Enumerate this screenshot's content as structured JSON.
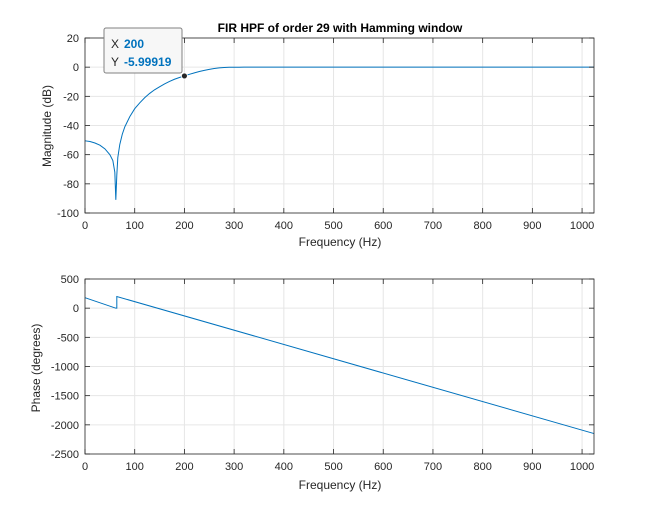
{
  "chart_data": [
    {
      "type": "line",
      "title": "FIR HPF of order 29 with Hamming window",
      "xlabel": "Frequency (Hz)",
      "ylabel": "Magnitude (dB)",
      "xlim": [
        0,
        1024
      ],
      "ylim": [
        -100,
        20
      ],
      "xticks": [
        0,
        100,
        200,
        300,
        400,
        500,
        600,
        700,
        800,
        900,
        1000
      ],
      "yticks": [
        -100,
        -80,
        -60,
        -40,
        -20,
        0,
        20
      ],
      "grid": true,
      "color": "#0072BD",
      "series": [
        {
          "x": [
            0,
            10,
            20,
            30,
            40,
            50,
            56,
            60,
            62,
            64,
            66,
            70,
            75,
            80,
            90,
            100,
            110,
            120,
            130,
            140,
            150,
            160,
            170,
            180,
            190,
            200,
            210,
            220,
            230,
            240,
            250,
            260,
            270,
            280,
            290,
            300,
            310,
            320,
            340,
            400,
            500,
            600,
            700,
            800,
            900,
            1024
          ],
          "y": [
            -50.5,
            -51,
            -52,
            -53.5,
            -56,
            -60,
            -64,
            -72,
            -91,
            -74,
            -62,
            -53,
            -46,
            -41,
            -34,
            -28.5,
            -24.5,
            -21,
            -18,
            -15.5,
            -13.5,
            -11.5,
            -9.8,
            -8.3,
            -7.1,
            -6,
            -4.9,
            -3.9,
            -3,
            -2.2,
            -1.5,
            -0.9,
            -0.5,
            -0.25,
            -0.1,
            -0.04,
            -0.02,
            0,
            0,
            0,
            0,
            0,
            0,
            0,
            0,
            0
          ]
        }
      ],
      "datatip": {
        "x_label": "X",
        "x_value": "200",
        "y_label": "Y",
        "y_value": "-5.99919",
        "x": 200,
        "y": -5.99919
      }
    },
    {
      "type": "line",
      "title": "",
      "xlabel": "Frequency (Hz)",
      "ylabel": "Phase (degrees)",
      "xlim": [
        0,
        1024
      ],
      "ylim": [
        -2500,
        500
      ],
      "xticks": [
        0,
        100,
        200,
        300,
        400,
        500,
        600,
        700,
        800,
        900,
        1000
      ],
      "yticks": [
        -2500,
        -2000,
        -1500,
        -1000,
        -500,
        0,
        500
      ],
      "grid": true,
      "color": "#0072BD",
      "series": [
        {
          "x": [
            0,
            62,
            62,
            64,
            64,
            1024
          ],
          "y": [
            180,
            0,
            0,
            0,
            200,
            -2150
          ]
        }
      ]
    }
  ],
  "colors": {
    "line": "#0072BD",
    "grid": "#e6e6e6",
    "axis": "#262626",
    "datatip_value": "#0072BD"
  }
}
